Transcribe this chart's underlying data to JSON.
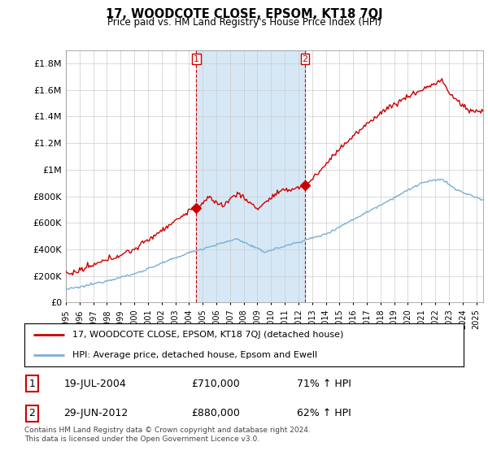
{
  "title": "17, WOODCOTE CLOSE, EPSOM, KT18 7QJ",
  "subtitle": "Price paid vs. HM Land Registry's House Price Index (HPI)",
  "ylim": [
    0,
    1900000
  ],
  "yticks": [
    0,
    200000,
    400000,
    600000,
    800000,
    1000000,
    1200000,
    1400000,
    1600000,
    1800000
  ],
  "ytick_labels": [
    "£0",
    "£200K",
    "£400K",
    "£600K",
    "£800K",
    "£1M",
    "£1.2M",
    "£1.4M",
    "£1.6M",
    "£1.8M"
  ],
  "hpi_color": "#7ab0d4",
  "hpi_fill_color": "#d6e8f5",
  "price_color": "#cc0000",
  "sale1_year": 2004.54,
  "sale1_price": 710000,
  "sale2_year": 2012.49,
  "sale2_price": 880000,
  "legend_line1": "17, WOODCOTE CLOSE, EPSOM, KT18 7QJ (detached house)",
  "legend_line2": "HPI: Average price, detached house, Epsom and Ewell",
  "table_row1": [
    "1",
    "19-JUL-2004",
    "£710,000",
    "71% ↑ HPI"
  ],
  "table_row2": [
    "2",
    "29-JUN-2012",
    "£880,000",
    "62% ↑ HPI"
  ],
  "footnote": "Contains HM Land Registry data © Crown copyright and database right 2024.\nThis data is licensed under the Open Government Licence v3.0.",
  "background_color": "#ffffff",
  "grid_color": "#cccccc"
}
